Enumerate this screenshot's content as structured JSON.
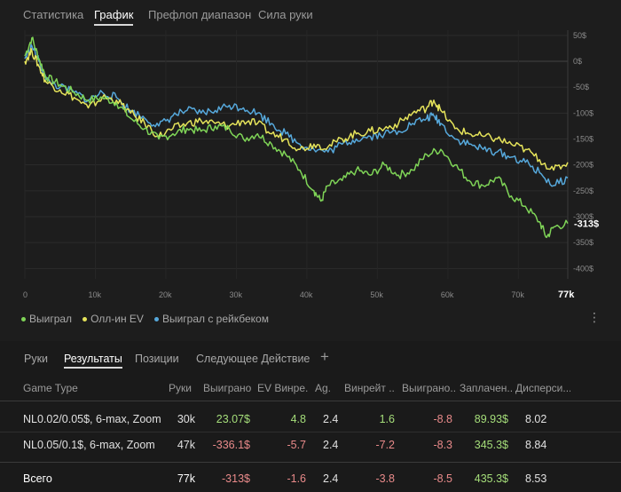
{
  "top_tabs": [
    "Статистика",
    "График",
    "Префлоп диапазон",
    "Сила руки"
  ],
  "active_top_tab": "График",
  "colors": {
    "won": "#7fd457",
    "allin_ev": "#e5e35a",
    "rakeback": "#56a8db",
    "positive": "#a5de7a",
    "negative": "#e98a8a"
  },
  "chart_data": {
    "type": "line",
    "x_ticks": [
      "0",
      "10k",
      "20k",
      "30k",
      "40k",
      "50k",
      "60k",
      "70k"
    ],
    "x_max_label": "77k",
    "y_ticks": [
      "50$",
      "0$",
      "-50$",
      "-100$",
      "-150$",
      "-200$",
      "-250$",
      "-300$",
      "-350$",
      "-400$"
    ],
    "end_value_label": "-313$",
    "xlim": [
      0,
      77000
    ],
    "ylim": [
      -420,
      60
    ],
    "grid": true,
    "series": [
      {
        "name": "Выиграл",
        "x": [
          0,
          1000,
          2000,
          3000,
          5000,
          7000,
          9000,
          11000,
          13000,
          15000,
          17000,
          19000,
          21000,
          23000,
          25000,
          27000,
          29000,
          31000,
          33000,
          35000,
          37000,
          39000,
          41000,
          42000,
          43000,
          45000,
          47000,
          49000,
          51000,
          53000,
          55000,
          57000,
          59000,
          61000,
          63000,
          65000,
          67000,
          69000,
          71000,
          73000,
          74000,
          75000,
          77000
        ],
        "y": [
          10,
          45,
          5,
          -30,
          -45,
          -60,
          -75,
          -70,
          -80,
          -110,
          -130,
          -150,
          -140,
          -130,
          -135,
          -125,
          -130,
          -150,
          -140,
          -160,
          -180,
          -210,
          -250,
          -270,
          -240,
          -230,
          -210,
          -220,
          -200,
          -220,
          -210,
          -180,
          -170,
          -200,
          -230,
          -240,
          -225,
          -260,
          -280,
          -310,
          -340,
          -320,
          -313
        ]
      },
      {
        "name": "Олл-ин EV",
        "x": [
          0,
          1000,
          2000,
          3000,
          5000,
          7000,
          9000,
          11000,
          13000,
          15000,
          17000,
          19000,
          21000,
          23000,
          25000,
          27000,
          29000,
          31000,
          33000,
          35000,
          37000,
          39000,
          41000,
          43000,
          45000,
          47000,
          49000,
          51000,
          53000,
          55000,
          57000,
          58000,
          59000,
          61000,
          63000,
          65000,
          67000,
          69000,
          71000,
          73000,
          75000,
          77000
        ],
        "y": [
          0,
          20,
          -10,
          -40,
          -55,
          -70,
          -90,
          -70,
          -75,
          -100,
          -120,
          -145,
          -130,
          -120,
          -115,
          -120,
          -125,
          -115,
          -120,
          -140,
          -150,
          -170,
          -160,
          -165,
          -150,
          -140,
          -135,
          -130,
          -120,
          -100,
          -90,
          -75,
          -95,
          -130,
          -140,
          -145,
          -150,
          -160,
          -170,
          -190,
          -210,
          -195
        ]
      },
      {
        "name": "Выиграл с рейкбеком",
        "x": [
          0,
          1000,
          2000,
          3000,
          5000,
          7000,
          9000,
          11000,
          13000,
          15000,
          17000,
          19000,
          21000,
          23000,
          25000,
          27000,
          29000,
          31000,
          33000,
          35000,
          37000,
          39000,
          41000,
          43000,
          45000,
          47000,
          49000,
          51000,
          53000,
          55000,
          57000,
          58000,
          59000,
          61000,
          63000,
          65000,
          67000,
          69000,
          71000,
          73000,
          75000,
          77000
        ],
        "y": [
          5,
          30,
          0,
          -35,
          -50,
          -60,
          -75,
          -60,
          -70,
          -95,
          -110,
          -125,
          -105,
          -95,
          -100,
          -95,
          -85,
          -90,
          -100,
          -120,
          -140,
          -160,
          -170,
          -175,
          -160,
          -150,
          -145,
          -140,
          -135,
          -120,
          -110,
          -105,
          -120,
          -150,
          -160,
          -170,
          -175,
          -185,
          -195,
          -215,
          -240,
          -225
        ]
      }
    ]
  },
  "more_icon": "ellipsis-vertical-icon",
  "sub_tabs": [
    "Руки",
    "Результаты",
    "Позиции",
    "Следующее Действие"
  ],
  "active_sub_tab": "Результаты",
  "add_icon": "plus-icon",
  "table": {
    "headers": [
      "Game Type",
      "Руки",
      "Выиграно",
      "EV Винре...",
      "Ag.",
      "Винрейт ...",
      "Выиграно...",
      "Заплачен...",
      "Дисперси..."
    ],
    "rows": [
      [
        "NL0.02/0.05$, 6-max, Zoom",
        "30k",
        "23.07$",
        "4.8",
        "2.4",
        "1.6",
        "-8.8",
        "89.93$",
        "8.02"
      ],
      [
        "NL0.05/0.1$, 6-max, Zoom",
        "47k",
        "-336.1$",
        "-5.7",
        "2.4",
        "-7.2",
        "-8.3",
        "345.3$",
        "8.84"
      ]
    ],
    "total": [
      "Всего",
      "77k",
      "-313$",
      "-1.6",
      "2.4",
      "-3.8",
      "-8.5",
      "435.3$",
      "8.53"
    ]
  }
}
